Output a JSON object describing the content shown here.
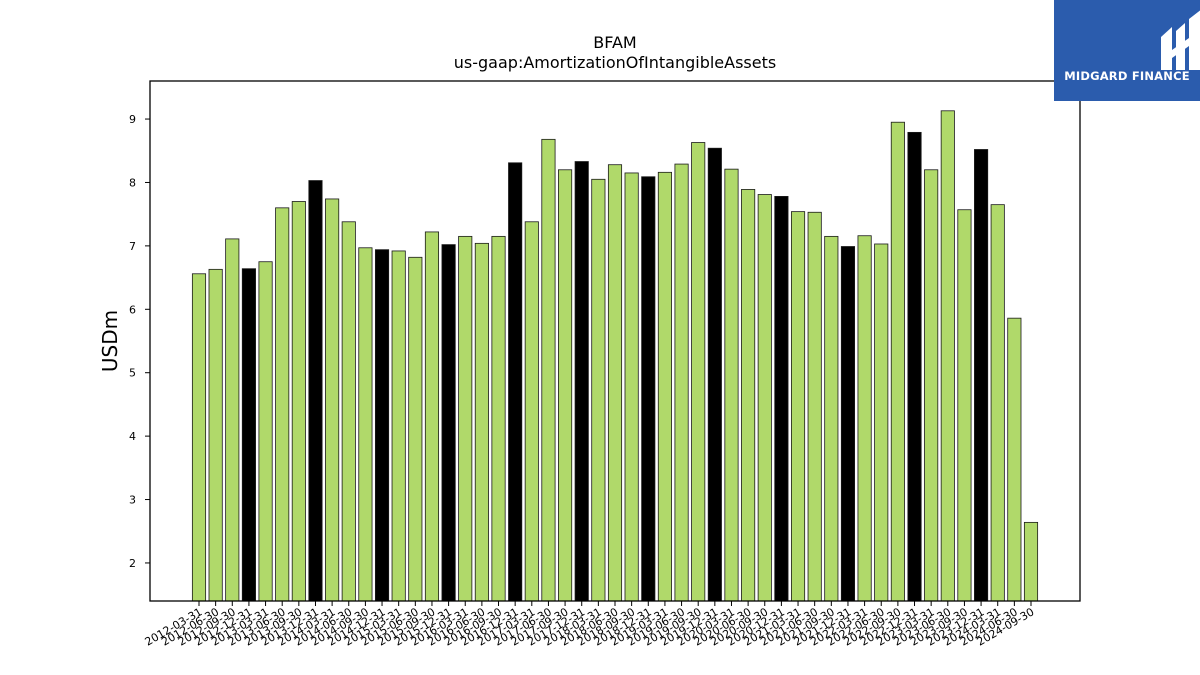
{
  "chart_data": {
    "type": "bar",
    "title": "BFAM",
    "subtitle": "us-gaap:AmortizationOfIntangibleAssets",
    "xlabel": "",
    "ylabel": "USDm",
    "ylim": [
      1.4,
      9.6
    ],
    "yticks": [
      2,
      3,
      4,
      5,
      6,
      7,
      8,
      9
    ],
    "grid": false,
    "colors": {
      "quarter": "#b0d96a",
      "annual": "#000000",
      "edge": "#1a1a1a"
    },
    "categories": [
      "2012-03-31",
      "2012-06-30",
      "2012-09-30",
      "2012-12-31",
      "2013-03-31",
      "2013-06-30",
      "2013-09-30",
      "2013-12-31",
      "2014-03-31",
      "2014-06-30",
      "2014-09-30",
      "2014-12-31",
      "2015-03-31",
      "2015-06-30",
      "2015-09-30",
      "2015-12-31",
      "2016-03-31",
      "2016-06-30",
      "2016-09-30",
      "2016-12-31",
      "2017-03-31",
      "2017-06-30",
      "2017-09-30",
      "2017-12-31",
      "2018-03-31",
      "2018-06-30",
      "2018-09-30",
      "2018-12-31",
      "2019-03-31",
      "2019-06-30",
      "2019-09-30",
      "2019-12-31",
      "2020-03-31",
      "2020-06-30",
      "2020-09-30",
      "2020-12-31",
      "2021-03-31",
      "2021-06-30",
      "2021-09-30",
      "2021-12-31",
      "2022-03-31",
      "2022-06-30",
      "2022-09-30",
      "2022-12-31",
      "2023-03-31",
      "2023-06-30",
      "2023-09-30",
      "2023-12-31",
      "2024-03-31",
      "2024-06-30",
      "2024-09-30"
    ],
    "values": [
      6.56,
      6.63,
      7.11,
      6.64,
      6.75,
      7.6,
      7.7,
      8.03,
      7.74,
      7.38,
      6.97,
      6.94,
      6.92,
      6.82,
      7.22,
      7.02,
      7.15,
      7.04,
      7.15,
      8.31,
      7.38,
      8.68,
      8.2,
      8.33,
      8.05,
      8.28,
      8.15,
      8.09,
      8.16,
      8.29,
      8.63,
      8.54,
      8.21,
      7.89,
      7.81,
      7.78,
      7.54,
      7.53,
      7.15,
      6.99,
      7.16,
      7.03,
      8.95,
      8.79,
      8.2,
      9.13,
      7.57,
      8.52,
      7.65,
      5.86,
      2.64
    ],
    "annual_flags": [
      false,
      false,
      false,
      true,
      false,
      false,
      false,
      true,
      false,
      false,
      false,
      true,
      false,
      false,
      false,
      true,
      false,
      false,
      false,
      true,
      false,
      false,
      false,
      true,
      false,
      false,
      false,
      true,
      false,
      false,
      false,
      true,
      false,
      false,
      false,
      true,
      false,
      false,
      false,
      true,
      false,
      false,
      false,
      true,
      false,
      false,
      false,
      true,
      false,
      false,
      false
    ]
  },
  "logo": {
    "text": "MIDGARD FINANCE",
    "icon": "midgard-logo-icon",
    "color": "#2b5cad"
  }
}
